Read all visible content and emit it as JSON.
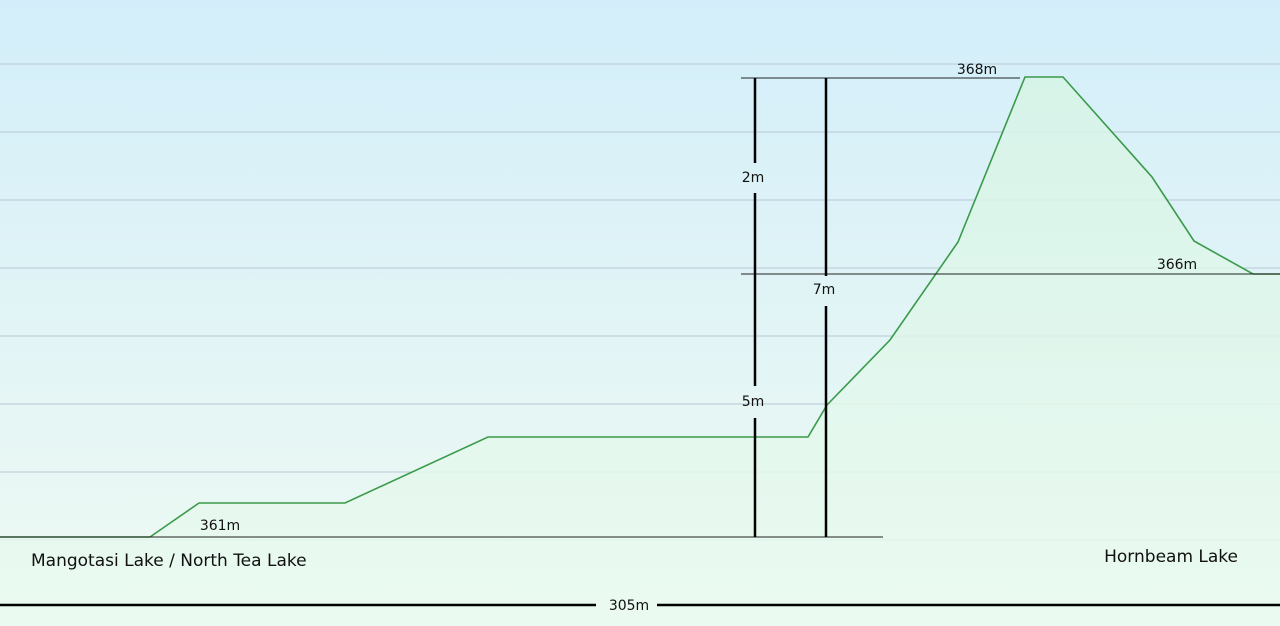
{
  "elevations": {
    "start": "361m",
    "top": "368m",
    "end": "366m"
  },
  "measures": {
    "upper": "2m",
    "lower": "5m",
    "total_rise": "7m"
  },
  "distance": "305m",
  "places": {
    "left": "Mangotasi Lake / North Tea Lake",
    "right": "Hornbeam Lake"
  }
}
